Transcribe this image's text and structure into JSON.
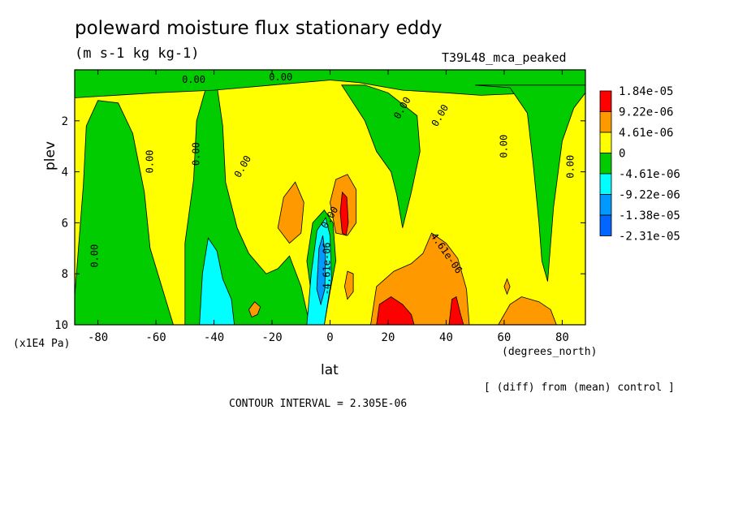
{
  "title": "poleward moisture flux stationary eddy",
  "units": "(m s-1 kg kg-1)",
  "run_label": "T39L48_mca_peaked",
  "note": "[ (diff) from (mean) control ]",
  "contour_interval": "CONTOUR INTERVAL = 2.305E-06",
  "chart_data": {
    "type": "heatmap",
    "xlabel": "lat",
    "xlabel_units": "(degrees_north)",
    "ylabel": "plev",
    "ylabel_units": "(x1E4 Pa)",
    "xlim": [
      -88,
      88
    ],
    "ylim": [
      10,
      0
    ],
    "x_ticks": [
      -80,
      -60,
      -40,
      -20,
      0,
      20,
      40,
      60,
      80
    ],
    "x_tick_labels": [
      "-80",
      "-60",
      "-40",
      "-20",
      "0",
      "20",
      "40",
      "60",
      "80"
    ],
    "y_ticks": [
      2,
      4,
      6,
      8,
      10
    ],
    "y_tick_labels": [
      "2",
      "4",
      "6",
      "8",
      "10"
    ],
    "legend": {
      "placement": "right",
      "labels": [
        "1.84e-05",
        "9.22e-06",
        "4.61e-06",
        "0",
        "-4.61e-06",
        "-9.22e-06",
        "-1.38e-05",
        "-2.31e-05"
      ],
      "colors": [
        "#ff0000",
        "#ff9900",
        "#ffff00",
        "#00cc00",
        "#00ffff",
        "#0099ff",
        "#0066ff"
      ]
    },
    "contour_labels": [
      {
        "text": "0.00",
        "x": -47,
        "y": 0.4,
        "rot": 0
      },
      {
        "text": "0.00",
        "x": -17,
        "y": 0.3,
        "rot": 0
      },
      {
        "text": "0.00",
        "x": -62,
        "y": 3.6,
        "rot": -90
      },
      {
        "text": "0.00",
        "x": -46,
        "y": 3.3,
        "rot": -90
      },
      {
        "text": "0.00",
        "x": -30,
        "y": 3.8,
        "rot": -60
      },
      {
        "text": "0.00",
        "x": -81,
        "y": 7.3,
        "rot": -90
      },
      {
        "text": "0.00",
        "x": 25,
        "y": 1.5,
        "rot": -60
      },
      {
        "text": "0.00",
        "x": 38,
        "y": 1.8,
        "rot": -60
      },
      {
        "text": "0.00",
        "x": 60,
        "y": 3.0,
        "rot": -90
      },
      {
        "text": "0.00",
        "x": 83,
        "y": 3.8,
        "rot": -90
      },
      {
        "text": "0.00",
        "x": 0,
        "y": 5.8,
        "rot": -60
      },
      {
        "text": "4.61e-06",
        "x": 40,
        "y": 7.2,
        "rot": 55
      },
      {
        "text": "-4.61e-06",
        "x": -1,
        "y": 7.8,
        "rot": -90
      }
    ],
    "regions": [
      {
        "name": "sh-high-green",
        "level": "-4.61e-06",
        "color": "#00cc00",
        "pts": [
          [
            -88,
            8.9
          ],
          [
            -85,
            4.5
          ],
          [
            -84,
            2.2
          ],
          [
            -80,
            1.2
          ],
          [
            -73,
            1.3
          ],
          [
            -68,
            2.5
          ],
          [
            -64,
            4.8
          ],
          [
            -62,
            7.0
          ],
          [
            -58,
            8.5
          ],
          [
            -54,
            10
          ],
          [
            -88,
            10
          ]
        ]
      },
      {
        "name": "sh-mid-green",
        "level": "-4.61e-06",
        "color": "#00cc00",
        "pts": [
          [
            -50,
            10
          ],
          [
            -50,
            6.8
          ],
          [
            -47,
            4.3
          ],
          [
            -46,
            2.0
          ],
          [
            -43,
            0.8
          ],
          [
            -39,
            0.6
          ],
          [
            -37,
            2.2
          ],
          [
            -36,
            4.4
          ],
          [
            -32,
            6.2
          ],
          [
            -28,
            7.2
          ],
          [
            -22,
            8.0
          ],
          [
            -18,
            7.8
          ],
          [
            -14,
            7.3
          ],
          [
            -10,
            8.5
          ],
          [
            -7,
            10
          ]
        ]
      },
      {
        "name": "top-green-band",
        "level": "-4.61e-06",
        "color": "#00cc00",
        "pts": [
          [
            -88,
            0
          ],
          [
            88,
            0
          ],
          [
            88,
            0.7
          ],
          [
            72,
            0.9
          ],
          [
            52,
            1.0
          ],
          [
            40,
            0.9
          ],
          [
            25,
            0.8
          ],
          [
            10,
            0.5
          ],
          [
            0,
            0.4
          ],
          [
            -20,
            0.6
          ],
          [
            -40,
            0.8
          ],
          [
            -60,
            0.9
          ],
          [
            -88,
            1.1
          ]
        ]
      },
      {
        "name": "eq-mid-green",
        "level": "-4.61e-06",
        "color": "#00cc00",
        "pts": [
          [
            -5,
            10
          ],
          [
            -8,
            7.5
          ],
          [
            -6,
            6.0
          ],
          [
            -2,
            5.5
          ],
          [
            1,
            6.0
          ],
          [
            2,
            7.5
          ],
          [
            0,
            8.7
          ],
          [
            -2,
            10
          ]
        ]
      },
      {
        "name": "nh-green-1",
        "level": "-4.61e-06",
        "color": "#00cc00",
        "pts": [
          [
            4,
            0.6
          ],
          [
            12,
            0.6
          ],
          [
            20,
            0.9
          ],
          [
            30,
            1.8
          ],
          [
            31,
            3.2
          ],
          [
            28,
            4.8
          ],
          [
            25,
            6.2
          ],
          [
            23,
            4.9
          ],
          [
            21,
            4.0
          ],
          [
            16,
            3.2
          ],
          [
            12,
            2.0
          ],
          [
            8,
            1.3
          ]
        ]
      },
      {
        "name": "nh-green-2",
        "level": "-4.61e-06",
        "color": "#00cc00",
        "pts": [
          [
            50,
            0.6
          ],
          [
            62,
            0.7
          ],
          [
            68,
            1.7
          ],
          [
            70,
            3.7
          ],
          [
            72,
            6.0
          ],
          [
            73,
            7.5
          ],
          [
            75,
            8.3
          ],
          [
            77,
            5.4
          ],
          [
            80,
            2.8
          ],
          [
            84,
            1.5
          ],
          [
            88,
            0.9
          ],
          [
            88,
            0.6
          ]
        ]
      },
      {
        "name": "sh-cyan",
        "level": "-9.22e-06",
        "color": "#00ffff",
        "pts": [
          [
            -45,
            10
          ],
          [
            -44,
            8.0
          ],
          [
            -42,
            6.6
          ],
          [
            -39,
            7.1
          ],
          [
            -37,
            8.2
          ],
          [
            -34,
            9.0
          ],
          [
            -33,
            10
          ]
        ]
      },
      {
        "name": "eq-cyan",
        "level": "-9.22e-06",
        "color": "#00ffff",
        "pts": [
          [
            -8,
            10
          ],
          [
            -6.5,
            8.0
          ],
          [
            -4.5,
            6.3
          ],
          [
            -1.5,
            5.8
          ],
          [
            0,
            6.5
          ],
          [
            0.5,
            8.2
          ],
          [
            -2,
            10
          ]
        ]
      },
      {
        "name": "eq-blue-core",
        "level": "-1.38e-05",
        "color": "#0099ff",
        "pts": [
          [
            -4.6,
            8.6
          ],
          [
            -3.8,
            7.0
          ],
          [
            -2.5,
            6.5
          ],
          [
            -1.6,
            7.3
          ],
          [
            -1.8,
            8.6
          ],
          [
            -3.2,
            9.2
          ]
        ]
      },
      {
        "name": "orange-mid-1",
        "level": "4.61e-06",
        "color": "#ff9900",
        "pts": [
          [
            -18,
            6.2
          ],
          [
            -16,
            5.0
          ],
          [
            -12,
            4.4
          ],
          [
            -9,
            5.2
          ],
          [
            -10,
            6.4
          ],
          [
            -14,
            6.8
          ]
        ]
      },
      {
        "name": "orange-mid-2",
        "level": "4.61e-06",
        "color": "#ff9900",
        "pts": [
          [
            0,
            5.2
          ],
          [
            2,
            4.3
          ],
          [
            6,
            4.1
          ],
          [
            9,
            4.7
          ],
          [
            9,
            6.0
          ],
          [
            6,
            6.5
          ],
          [
            2,
            6.4
          ]
        ]
      },
      {
        "name": "red-mid",
        "level": "1.84e-05",
        "color": "#ff0000",
        "pts": [
          [
            3.5,
            5.6
          ],
          [
            4.2,
            4.8
          ],
          [
            5.8,
            5.0
          ],
          [
            6.3,
            6.0
          ],
          [
            5.5,
            6.5
          ],
          [
            4.2,
            6.4
          ]
        ]
      },
      {
        "name": "orange-nh-low",
        "level": "4.61e-06",
        "color": "#ff9900",
        "pts": [
          [
            14,
            10
          ],
          [
            16,
            8.5
          ],
          [
            22,
            7.9
          ],
          [
            28,
            7.6
          ],
          [
            32,
            7.2
          ],
          [
            35,
            6.4
          ],
          [
            40,
            6.8
          ],
          [
            44,
            7.4
          ],
          [
            47,
            8.6
          ],
          [
            48,
            10
          ]
        ]
      },
      {
        "name": "red-nh-low-1",
        "level": "1.84e-05",
        "color": "#ff0000",
        "pts": [
          [
            16,
            10
          ],
          [
            17,
            9.2
          ],
          [
            21,
            8.9
          ],
          [
            25,
            9.2
          ],
          [
            28,
            9.6
          ],
          [
            29,
            10
          ]
        ]
      },
      {
        "name": "red-nh-low-2",
        "level": "1.84e-05",
        "color": "#ff0000",
        "pts": [
          [
            41,
            10
          ],
          [
            42,
            9.0
          ],
          [
            43.5,
            8.9
          ],
          [
            45,
            9.6
          ],
          [
            46,
            10
          ]
        ]
      },
      {
        "name": "orange-nh-far",
        "level": "4.61e-06",
        "color": "#ff9900",
        "pts": [
          [
            58,
            10
          ],
          [
            62,
            9.2
          ],
          [
            66,
            8.9
          ],
          [
            72,
            9.1
          ],
          [
            76,
            9.4
          ],
          [
            78,
            10
          ]
        ]
      },
      {
        "name": "orange-small-eq",
        "level": "4.61e-06",
        "color": "#ff9900",
        "pts": [
          [
            5,
            8.5
          ],
          [
            6,
            7.9
          ],
          [
            8,
            8.0
          ],
          [
            8,
            8.7
          ],
          [
            6,
            9.0
          ]
        ]
      },
      {
        "name": "orange-small-sh",
        "level": "4.61e-06",
        "color": "#ff9900",
        "pts": [
          [
            -28,
            9.4
          ],
          [
            -26,
            9.1
          ],
          [
            -24,
            9.3
          ],
          [
            -25,
            9.6
          ],
          [
            -27,
            9.7
          ]
        ]
      },
      {
        "name": "orange-small-nh",
        "level": "4.61e-06",
        "color": "#ff9900",
        "pts": [
          [
            60,
            8.5
          ],
          [
            61,
            8.2
          ],
          [
            62,
            8.5
          ],
          [
            61,
            8.8
          ]
        ]
      }
    ]
  }
}
